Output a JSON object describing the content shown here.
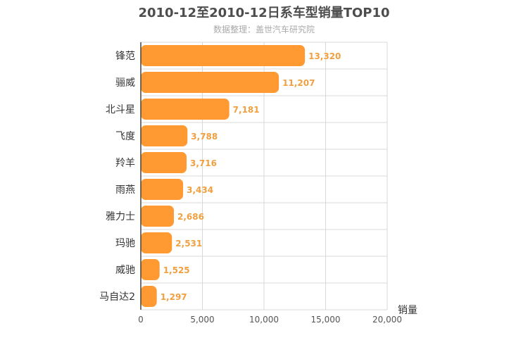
{
  "chart_data": {
    "type": "bar",
    "orientation": "horizontal",
    "title": "2010-12至2010-12日系车型销量TOP10",
    "subtitle": "数据整理：盖世汽车研究院",
    "categories": [
      "锋范",
      "骊威",
      "北斗星",
      "飞度",
      "羚羊",
      "雨燕",
      "雅力士",
      "玛驰",
      "威驰",
      "马自达2"
    ],
    "values": [
      13320,
      11207,
      7181,
      3788,
      3716,
      3434,
      2686,
      2531,
      1525,
      1297
    ],
    "value_labels": [
      "13,320",
      "11,207",
      "7,181",
      "3,788",
      "3,716",
      "3,434",
      "2,686",
      "2,531",
      "1,525",
      "1,297"
    ],
    "xlabel": "销量",
    "ylabel": "",
    "xlim": [
      0,
      20000
    ],
    "xticks": [
      0,
      5000,
      10000,
      15000,
      20000
    ],
    "xtick_labels": [
      "0",
      "5,000",
      "10,000",
      "15,000",
      "20,000"
    ],
    "grid": true,
    "legend": "none",
    "bar_color": "#ff9a33",
    "label_color": "#f0a040"
  }
}
